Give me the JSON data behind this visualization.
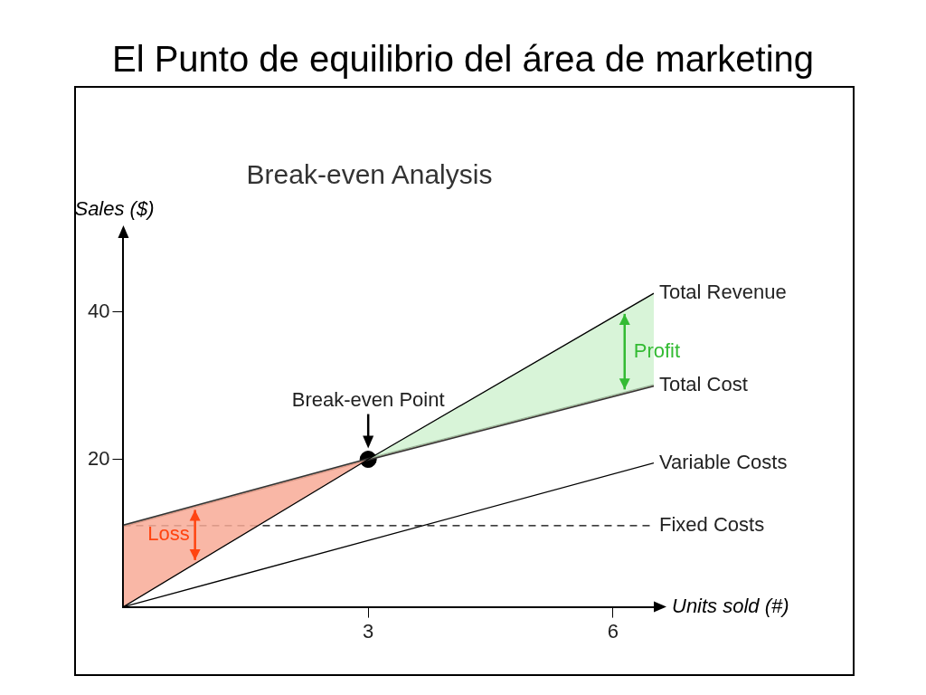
{
  "chart_data": {
    "type": "line",
    "title": "El Punto de equilibrio del área de marketing",
    "subtitle": "Break-even Analysis",
    "xlabel": "Units sold (#)",
    "ylabel": "Sales ($)",
    "xlim": [
      0,
      6.5
    ],
    "ylim": [
      0,
      50
    ],
    "xticks": [
      3,
      6
    ],
    "yticks": [
      20,
      40
    ],
    "grid": false,
    "legend": false,
    "marker": "none",
    "series": [
      {
        "name": "Total Revenue",
        "color": "#000000",
        "x": [
          0,
          3,
          6.5
        ],
        "values": [
          0,
          20,
          42.5
        ]
      },
      {
        "name": "Total Cost",
        "color": "#333333",
        "x": [
          0,
          3,
          6.5
        ],
        "values": [
          11,
          20,
          30
        ]
      },
      {
        "name": "Variable Costs",
        "color": "#000000",
        "x": [
          0,
          6.5
        ],
        "values": [
          0,
          19.5
        ]
      },
      {
        "name": "Fixed Costs",
        "color": "#000000",
        "x": [
          0,
          6.5
        ],
        "values": [
          11,
          11
        ],
        "line_style": "dashed"
      },
      {
        "type": "scatter",
        "color": "#000000",
        "x": [
          3
        ],
        "values": [
          20
        ],
        "marker": "circle"
      }
    ],
    "annotations": [
      {
        "text": "Break-even Point",
        "x": 3,
        "y": 20
      },
      "Profit",
      "Loss"
    ]
  }
}
